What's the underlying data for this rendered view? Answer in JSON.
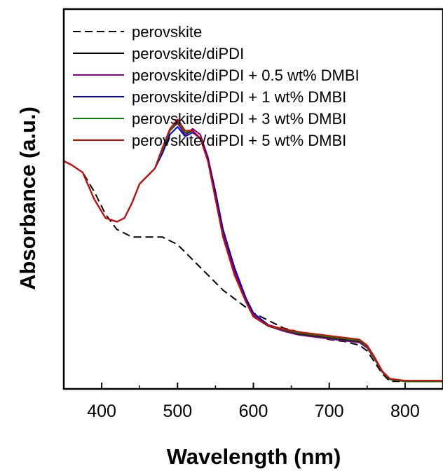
{
  "chart_data": {
    "type": "line",
    "xlabel": "Wavelength (nm)",
    "ylabel": "Absorbance (a.u.)",
    "xlim": [
      350,
      850
    ],
    "ylim": [
      0,
      1.0
    ],
    "x_ticks": [
      "400",
      "500",
      "600",
      "700",
      "800"
    ],
    "x_tick_values": [
      400,
      500,
      600,
      700,
      800
    ],
    "y_ticks_shown": false,
    "legend_position": "top-left",
    "series": [
      {
        "name": "perovskite",
        "color": "#000000",
        "dash": "dashed",
        "x": [
          350,
          360,
          375,
          390,
          405,
          420,
          440,
          460,
          480,
          500,
          520,
          540,
          560,
          580,
          600,
          620,
          640,
          660,
          680,
          700,
          720,
          740,
          750,
          760,
          770,
          780,
          800,
          820,
          850
        ],
        "y": [
          0.6,
          0.59,
          0.57,
          0.52,
          0.46,
          0.42,
          0.4,
          0.4,
          0.4,
          0.38,
          0.34,
          0.3,
          0.26,
          0.23,
          0.2,
          0.18,
          0.16,
          0.15,
          0.14,
          0.13,
          0.125,
          0.115,
          0.1,
          0.07,
          0.04,
          0.02,
          0.02,
          0.02,
          0.02
        ]
      },
      {
        "name": "perovskite/diPDI",
        "color": "#000000",
        "dash": "solid",
        "x": [
          350,
          360,
          375,
          390,
          405,
          420,
          430,
          440,
          450,
          460,
          470,
          480,
          490,
          500,
          510,
          520,
          530,
          540,
          550,
          560,
          575,
          590,
          600,
          620,
          640,
          660,
          680,
          700,
          720,
          740,
          750,
          760,
          770,
          780,
          800,
          820,
          850
        ],
        "y": [
          0.6,
          0.59,
          0.57,
          0.5,
          0.45,
          0.44,
          0.45,
          0.49,
          0.54,
          0.56,
          0.58,
          0.63,
          0.68,
          0.7,
          0.67,
          0.68,
          0.66,
          0.6,
          0.5,
          0.4,
          0.3,
          0.23,
          0.19,
          0.165,
          0.155,
          0.145,
          0.14,
          0.135,
          0.13,
          0.125,
          0.11,
          0.08,
          0.045,
          0.025,
          0.02,
          0.02,
          0.02
        ]
      },
      {
        "name": "perovskite/diPDI + 0.5 wt% DMBI",
        "color": "#800080",
        "dash": "solid",
        "x": [
          350,
          360,
          375,
          390,
          405,
          420,
          430,
          440,
          450,
          460,
          470,
          480,
          490,
          500,
          510,
          520,
          530,
          540,
          550,
          560,
          575,
          590,
          600,
          620,
          640,
          660,
          680,
          700,
          720,
          740,
          750,
          760,
          770,
          780,
          800,
          820,
          850
        ],
        "y": [
          0.6,
          0.59,
          0.57,
          0.5,
          0.45,
          0.44,
          0.45,
          0.49,
          0.54,
          0.56,
          0.58,
          0.63,
          0.68,
          0.7,
          0.67,
          0.685,
          0.67,
          0.61,
          0.51,
          0.41,
          0.31,
          0.235,
          0.195,
          0.165,
          0.152,
          0.142,
          0.137,
          0.132,
          0.127,
          0.122,
          0.108,
          0.078,
          0.044,
          0.025,
          0.02,
          0.02,
          0.02
        ]
      },
      {
        "name": "perovskite/diPDI + 1 wt% DMBI",
        "color": "#0000cc",
        "dash": "solid",
        "x": [
          350,
          360,
          375,
          390,
          405,
          420,
          430,
          440,
          450,
          460,
          470,
          480,
          490,
          500,
          510,
          520,
          530,
          540,
          550,
          560,
          575,
          590,
          600,
          620,
          640,
          660,
          680,
          700,
          720,
          740,
          750,
          760,
          770,
          780,
          800,
          820,
          850
        ],
        "y": [
          0.6,
          0.59,
          0.57,
          0.5,
          0.45,
          0.44,
          0.45,
          0.49,
          0.54,
          0.56,
          0.58,
          0.62,
          0.67,
          0.69,
          0.665,
          0.675,
          0.66,
          0.61,
          0.52,
          0.42,
          0.32,
          0.24,
          0.2,
          0.168,
          0.157,
          0.148,
          0.143,
          0.138,
          0.133,
          0.128,
          0.113,
          0.082,
          0.046,
          0.026,
          0.021,
          0.021,
          0.021
        ]
      },
      {
        "name": "perovskite/diPDI + 3 wt% DMBI",
        "color": "#008000",
        "dash": "solid",
        "x": [
          350,
          360,
          375,
          390,
          405,
          420,
          430,
          440,
          450,
          460,
          470,
          480,
          490,
          500,
          510,
          520,
          530,
          540,
          550,
          560,
          575,
          590,
          600,
          620,
          640,
          660,
          680,
          700,
          720,
          740,
          750,
          760,
          770,
          780,
          800,
          820,
          850
        ],
        "y": [
          0.6,
          0.59,
          0.57,
          0.5,
          0.45,
          0.44,
          0.45,
          0.49,
          0.54,
          0.56,
          0.58,
          0.63,
          0.68,
          0.705,
          0.675,
          0.68,
          0.66,
          0.6,
          0.5,
          0.4,
          0.3,
          0.23,
          0.19,
          0.166,
          0.156,
          0.147,
          0.142,
          0.137,
          0.132,
          0.127,
          0.112,
          0.08,
          0.045,
          0.025,
          0.02,
          0.02,
          0.02
        ]
      },
      {
        "name": "perovskite/diPDI + 5 wt% DMBI",
        "color": "#e00000",
        "dash": "solid",
        "x": [
          350,
          360,
          375,
          390,
          405,
          420,
          430,
          440,
          450,
          460,
          470,
          480,
          490,
          500,
          510,
          520,
          530,
          540,
          550,
          560,
          575,
          590,
          600,
          620,
          640,
          660,
          680,
          700,
          720,
          740,
          750,
          760,
          770,
          780,
          800,
          820,
          850
        ],
        "y": [
          0.6,
          0.59,
          0.57,
          0.5,
          0.45,
          0.44,
          0.45,
          0.49,
          0.54,
          0.56,
          0.58,
          0.635,
          0.685,
          0.71,
          0.68,
          0.68,
          0.66,
          0.6,
          0.5,
          0.4,
          0.3,
          0.23,
          0.19,
          0.167,
          0.158,
          0.15,
          0.145,
          0.14,
          0.135,
          0.13,
          0.115,
          0.083,
          0.047,
          0.027,
          0.022,
          0.022,
          0.022
        ]
      }
    ]
  }
}
